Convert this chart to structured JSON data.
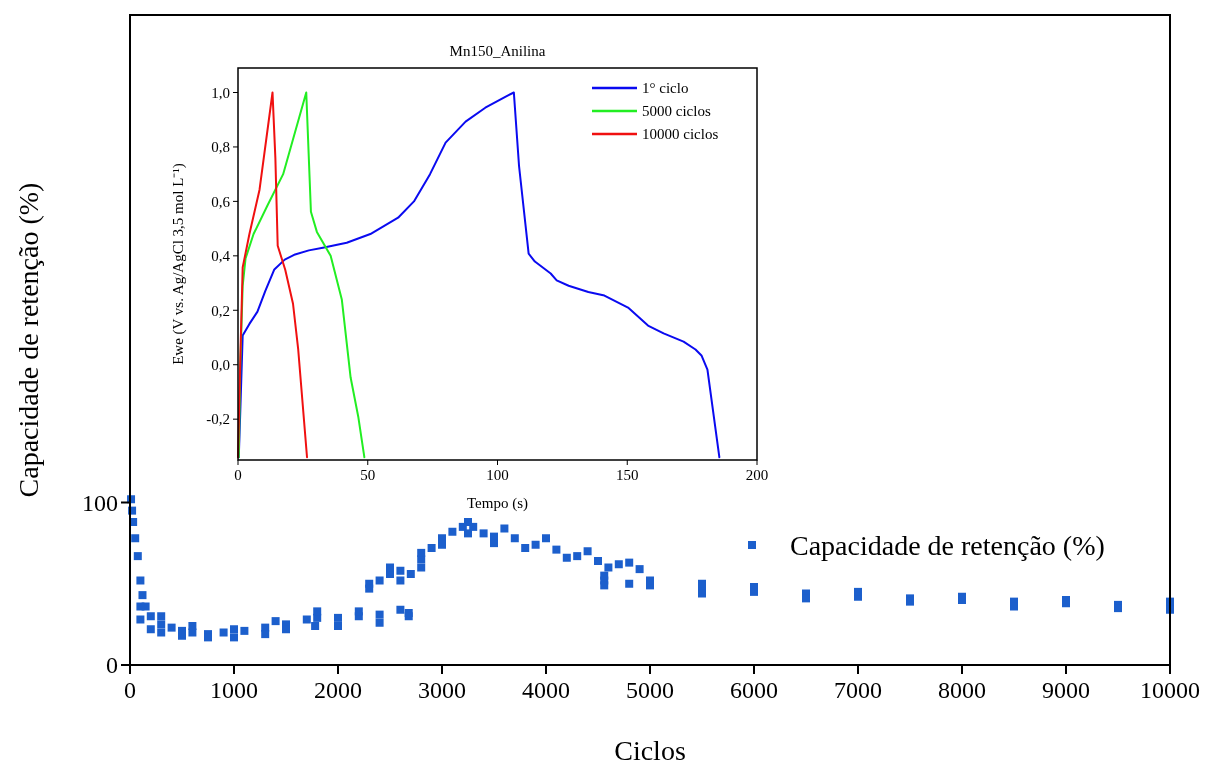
{
  "chart_data": [
    {
      "type": "scatter",
      "xlabel": "Ciclos",
      "ylabel": "Capacidade de retenção (%)",
      "xlim": [
        0,
        10000
      ],
      "ylim": [
        0,
        400
      ],
      "xticks": [
        0,
        1000,
        2000,
        3000,
        4000,
        5000,
        6000,
        7000,
        8000,
        9000,
        10000
      ],
      "yticks": [
        0,
        100
      ],
      "marker": "square",
      "legend": "right",
      "series": [
        {
          "name": "Capacidade de retenção (%)",
          "color": "#1c5fcc",
          "x": [
            10,
            20,
            30,
            50,
            75,
            100,
            120,
            150,
            200,
            300,
            400,
            500,
            600,
            750,
            900,
            1100,
            1300,
            1500,
            1700,
            1800,
            2000,
            2200,
            2400,
            2680,
            100,
            200,
            300,
            500,
            750,
            1000,
            1300,
            1500,
            1780,
            2000,
            2400,
            2680,
            100,
            300,
            600,
            1000,
            1400,
            1800,
            2200,
            2600,
            2300,
            2400,
            2500,
            2600,
            2700,
            2800,
            2900,
            3000,
            3100,
            3200,
            3300,
            3400,
            3500,
            3700,
            3900,
            4100,
            4300,
            4500,
            4700,
            4900,
            2300,
            2600,
            2800,
            3000,
            3250,
            3500,
            3800,
            4200,
            4600,
            2500,
            2800,
            3250,
            3600,
            4000,
            4400,
            4800,
            4560,
            4800,
            5000,
            5500,
            6000,
            6500,
            7000,
            7500,
            8000,
            8500,
            9000,
            9500,
            10000,
            4560,
            5000,
            5500,
            6000,
            7000,
            8000,
            9000,
            10000,
            4560,
            5500,
            6500,
            7500,
            8500,
            9500,
            10000
          ],
          "values": [
            102,
            95,
            88,
            78,
            67,
            52,
            43,
            36,
            30,
            25,
            23,
            21,
            20,
            19,
            20,
            21,
            23,
            25,
            28,
            29,
            29,
            30,
            31,
            32,
            28,
            22,
            20,
            18,
            17,
            17,
            19,
            22,
            24,
            24,
            26,
            30,
            36,
            30,
            24,
            22,
            27,
            33,
            33,
            34,
            50,
            52,
            56,
            58,
            56,
            65,
            72,
            78,
            82,
            85,
            85,
            81,
            79,
            78,
            74,
            71,
            67,
            64,
            62,
            59,
            47,
            52,
            60,
            74,
            81,
            75,
            72,
            66,
            60,
            60,
            69,
            88,
            84,
            78,
            70,
            63,
            52,
            50,
            49,
            47,
            45,
            44,
            42,
            41,
            40,
            39,
            38,
            37,
            37,
            55,
            52,
            50,
            48,
            45,
            42,
            40,
            39,
            49,
            44,
            41,
            39,
            36,
            35,
            34
          ]
        }
      ]
    },
    {
      "type": "line",
      "title": "Mn150_Anilina",
      "xlabel": "Tempo (s)",
      "ylabel": "Ewe (V vs. Ag/AgCl 3,5 mol L⁻¹)",
      "xlim": [
        0,
        200
      ],
      "ylim": [
        -0.35,
        1.09
      ],
      "xticks": [
        0,
        50,
        100,
        150,
        200
      ],
      "yticks": [
        {
          "value": -0.2,
          "label": "-0,2"
        },
        {
          "value": 0,
          "label": "0,0"
        },
        {
          "value": 0.2,
          "label": "0,2"
        },
        {
          "value": 0.4,
          "label": "0,4"
        },
        {
          "value": 0.6,
          "label": "0,6"
        },
        {
          "value": 0.8,
          "label": "0,8"
        },
        {
          "value": 1,
          "label": "1,0"
        }
      ],
      "legend": "top right",
      "line_style": "solid",
      "series": [
        {
          "name": "1° ciclo",
          "color": "#0a0af0",
          "x": [
            0.3,
            0.9,
            1.8,
            4.4,
            7.5,
            10.5,
            14,
            18,
            22,
            27.3,
            32.7,
            41.9,
            51,
            61.7,
            67.8,
            74,
            80,
            87.7,
            95.3,
            103,
            106.3,
            108.3,
            112,
            114.4,
            120.5,
            122.8,
            127.4,
            135,
            141.2,
            150.3,
            158,
            164,
            171.7,
            176.3,
            178.6,
            180.9,
            185.5
          ],
          "values": [
            -0.34,
            -0.165,
            0.107,
            0.15,
            0.195,
            0.27,
            0.35,
            0.386,
            0.405,
            0.42,
            0.43,
            0.448,
            0.48,
            0.54,
            0.6,
            0.7,
            0.816,
            0.893,
            0.944,
            0.984,
            1.0,
            0.73,
            0.408,
            0.379,
            0.335,
            0.31,
            0.29,
            0.267,
            0.254,
            0.21,
            0.144,
            0.115,
            0.085,
            0.056,
            0.034,
            -0.018,
            -0.34
          ]
        },
        {
          "name": "5000 ciclos",
          "color": "#22ee22",
          "x": [
            0.3,
            0.9,
            1.8,
            2.9,
            6,
            11.3,
            17.4,
            26.3,
            28.1,
            30.4,
            35.7,
            40,
            43.4,
            46.4,
            48.7
          ],
          "values": [
            -0.34,
            0,
            0.29,
            0.39,
            0.48,
            0.584,
            0.7,
            1.0,
            0.562,
            0.488,
            0.4,
            0.24,
            -0.047,
            -0.194,
            -0.34
          ]
        },
        {
          "name": "10000 ciclos",
          "color": "#f01010",
          "x": [
            0,
            0.9,
            1.8,
            4.4,
            8.3,
            13.3,
            14.4,
            15.3,
            18.2,
            21.2,
            23.2,
            26.6
          ],
          "values": [
            -0.34,
            0.026,
            0.357,
            0.48,
            0.643,
            1.0,
            0.76,
            0.437,
            0.349,
            0.224,
            0.056,
            -0.34
          ]
        }
      ]
    }
  ]
}
